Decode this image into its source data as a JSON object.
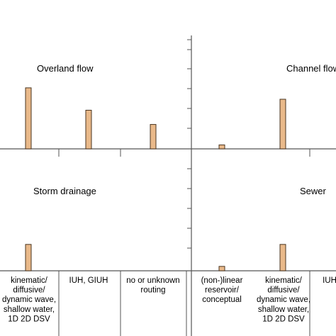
{
  "colors": {
    "bar_fill": "#e9b98a",
    "bar_stroke": "#4a3520",
    "axis": "#555555"
  },
  "chart_data": [
    {
      "type": "bar",
      "title": "Overland flow",
      "categories": [
        "kinematic/ diffusive/ dynamic wave, shallow water, 1D 2D DSV",
        "IUH, GIUH",
        "no or unknown routing"
      ],
      "values": [
        3,
        1.9,
        1.2
      ],
      "ylim": [
        0,
        5
      ],
      "grid": false
    },
    {
      "type": "bar",
      "title": "Channel flow",
      "categories": [
        "(non-)linear reservoir/ conceptual",
        "kinematic/ diffusive/ dynamic wave, shallow water, 1D 2D DSV",
        "IUH, GIUH"
      ],
      "values": [
        0.2,
        2.5,
        0
      ],
      "ylim": [
        0,
        5
      ],
      "grid": false
    },
    {
      "type": "bar",
      "title": "Storm drainage",
      "categories": [
        "kinematic/ diffusive/ dynamic wave, shallow water, 1D 2D DSV",
        "IUH, GIUH",
        "no or unknown routing"
      ],
      "values": [
        1.2,
        0,
        0
      ],
      "ylim": [
        0,
        5
      ],
      "grid": false
    },
    {
      "type": "bar",
      "title": "Sewer",
      "categories": [
        "(non-)linear reservoir/ conceptual",
        "kinematic/ diffusive/ dynamic wave, shallow water, 1D 2D DSV",
        "IUH, GIUH"
      ],
      "values": [
        0.2,
        1.2,
        0
      ],
      "ylim": [
        0,
        5
      ],
      "grid": false
    }
  ],
  "labels": {
    "bottom_left": [
      [
        "kinematic/",
        "diffusive/",
        "dynamic wave,",
        "shallow water,",
        "1D 2D DSV"
      ],
      [
        "IUH, GIUH"
      ],
      [
        "no or unknown",
        "routing"
      ]
    ],
    "bottom_right": [
      [
        "(non-)linear",
        "reservoir/",
        "conceptual"
      ],
      [
        "kinematic/",
        "diffusive/",
        "dynamic wave,",
        "shallow water,",
        "1D 2D DSV"
      ],
      [
        "IUH"
      ]
    ]
  }
}
